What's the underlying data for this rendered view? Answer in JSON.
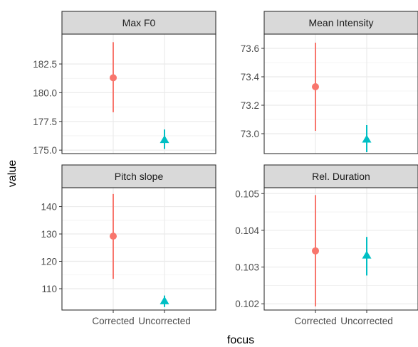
{
  "chart_data": {
    "type": "pointrange",
    "xlabel": "focus",
    "ylabel": "value",
    "categories": [
      "Corrected",
      "Uncorrected"
    ],
    "colors": {
      "Corrected": "#F8766D",
      "Uncorrected": "#00BFC4"
    },
    "shapes": {
      "Corrected": "circle",
      "Uncorrected": "triangle"
    },
    "panels": [
      {
        "title": "Max F0",
        "ylim": [
          174.7,
          185.1
        ],
        "yticks": [
          175.0,
          177.5,
          180.0,
          182.5
        ],
        "ytick_labels": [
          "175.0",
          "177.5",
          "180.0",
          "182.5"
        ],
        "points": [
          {
            "category": "Corrected",
            "y": 181.3,
            "ymin": 178.3,
            "ymax": 184.4
          },
          {
            "category": "Uncorrected",
            "y": 175.9,
            "ymin": 175.1,
            "ymax": 176.8
          }
        ]
      },
      {
        "title": "Mean Intensity",
        "ylim": [
          72.86,
          73.7
        ],
        "yticks": [
          73.0,
          73.2,
          73.4,
          73.6
        ],
        "ytick_labels": [
          "73.0",
          "73.2",
          "73.4",
          "73.6"
        ],
        "points": [
          {
            "category": "Corrected",
            "y": 73.33,
            "ymin": 73.02,
            "ymax": 73.64
          },
          {
            "category": "Uncorrected",
            "y": 72.96,
            "ymin": 72.87,
            "ymax": 73.06
          }
        ]
      },
      {
        "title": "Pitch slope",
        "ylim": [
          102.2,
          146.9
        ],
        "yticks": [
          110,
          120,
          130,
          140
        ],
        "ytick_labels": [
          "110",
          "120",
          "130",
          "140"
        ],
        "points": [
          {
            "category": "Corrected",
            "y": 129.2,
            "ymin": 113.6,
            "ymax": 144.6
          },
          {
            "category": "Uncorrected",
            "y": 105.5,
            "ymin": 103.3,
            "ymax": 107.5
          }
        ]
      },
      {
        "title": "Rel. Duration",
        "ylim": [
          0.10183,
          0.10516
        ],
        "yticks": [
          0.102,
          0.103,
          0.104,
          0.105
        ],
        "ytick_labels": [
          "0.102",
          "0.103",
          "0.104",
          "0.105"
        ],
        "points": [
          {
            "category": "Corrected",
            "y": 0.10344,
            "ymin": 0.10193,
            "ymax": 0.10496
          },
          {
            "category": "Uncorrected",
            "y": 0.10332,
            "ymin": 0.10277,
            "ymax": 0.10382
          }
        ]
      }
    ]
  }
}
